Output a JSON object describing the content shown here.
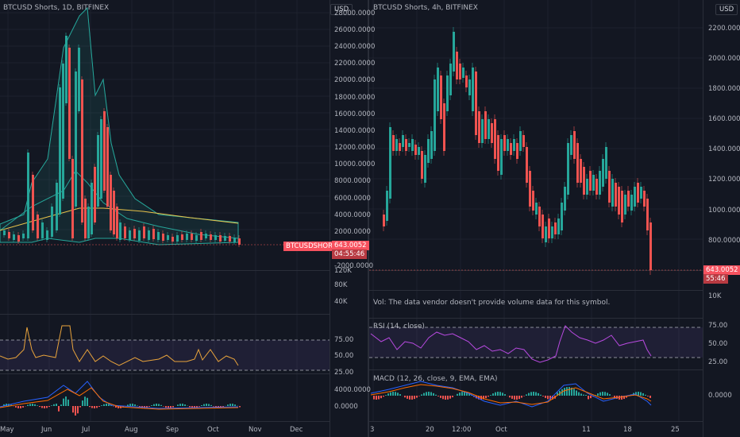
{
  "left": {
    "title": "BTCUSD Shorts, 1D, BITFINEX",
    "currency": "USD",
    "price_axis": [
      "28000.0000",
      "26000.0000",
      "24000.0000",
      "22000.0000",
      "20000.0000",
      "18000.0000",
      "16000.0000",
      "14000.0000",
      "12000.0000",
      "10000.0000",
      "8000.0000",
      "6000.0000",
      "4000.0000",
      "2000.0000",
      "-2000.0000"
    ],
    "symbol_tag": "BTCUSDSHORTS",
    "last_price": "643.0052",
    "countdown": "04:55:46",
    "volume_axis": [
      "120K",
      "80K",
      "40K"
    ],
    "rsi_axis": [
      "75.00",
      "50.00",
      "25.00"
    ],
    "macd_axis": [
      "4000.0000",
      "0.0000"
    ],
    "time_axis": [
      "May",
      "Jun",
      "Jul",
      "Aug",
      "Sep",
      "Oct",
      "Nov",
      "Dec"
    ]
  },
  "right": {
    "title": "BTCUSD Shorts, 4h, BITFINEX",
    "currency": "USD",
    "price_axis": [
      "2200.0000",
      "2000.0000",
      "1800.0000",
      "1600.0000",
      "1400.0000",
      "1200.0000",
      "1000.0000",
      "800.0000"
    ],
    "last_price": "643.0052",
    "countdown": "55:46",
    "volume_axis": [
      "10K"
    ],
    "volume_note": "Vol: The data vendor doesn't provide volume data for this symbol.",
    "rsi_label": "RSI (14, close)",
    "rsi_axis": [
      "75.00",
      "50.00",
      "25.00"
    ],
    "macd_label": "MACD (12, 26, close, 9, EMA, EMA)",
    "macd_axis": [
      "0.0000"
    ],
    "time_axis": [
      "3",
      "20",
      "12:00",
      "Oct",
      "11",
      "18",
      "25"
    ]
  },
  "colors": {
    "up": "#26a69a",
    "down": "#ef5350",
    "rsi": "#b84ae0",
    "rsi_left": "#e8a33c",
    "ema": "#e9c44a",
    "band": "#26a69a",
    "macd": "#2962ff",
    "signal": "#ff6d00"
  }
}
